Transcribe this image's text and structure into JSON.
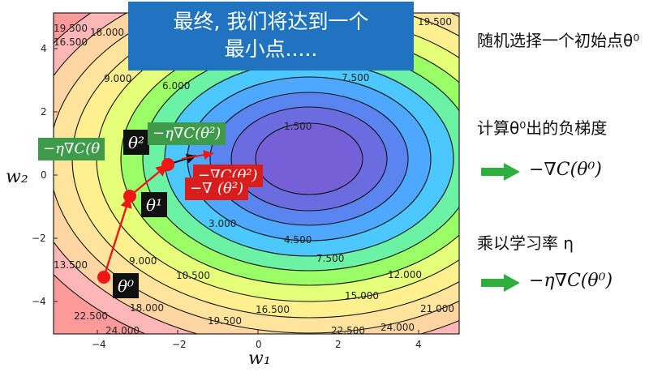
{
  "banner": {
    "line1": "最终, 我们将达到一个",
    "line2": "最小点....."
  },
  "steps": {
    "step1": "随机选择一个初始点θ⁰",
    "step2": "计算θ⁰出的负梯度",
    "step2_expr": "−∇C(θ⁰)",
    "step3": "乘以学习率 η",
    "step3_expr": "−η∇C(θ⁰)"
  },
  "axes": {
    "x_name": "w₁",
    "y_name": "w₂",
    "x_ticks": [
      "−4",
      "−2",
      "0",
      "2",
      "4"
    ],
    "y_ticks": [
      "4",
      "2",
      "0",
      "−2",
      "−4"
    ]
  },
  "contour_labels": [
    "19.500",
    "18.000",
    "16.500",
    "19.500",
    "7.500",
    "9.000",
    "6.000",
    "1.500",
    "4.500",
    "3.000",
    "7.500",
    "9.000",
    "10.500",
    "12.000",
    "13.500",
    "15.000",
    "16.500",
    "18.000",
    "19.500",
    "21.000",
    "22.500",
    "24.000",
    "22.500",
    "24.000"
  ],
  "annotations": {
    "theta0": "θ⁰",
    "theta1": "θ¹",
    "theta2": "θ²",
    "grad_green_1": "−η∇C(θ",
    "grad_green_2": "−η∇C(θ²)",
    "grad_red_1": "−∇C(θ²)",
    "grad_red_2": "−∇",
    "grad_red_3": "(θ²)"
  },
  "colors": {
    "banner": "#1f73bf",
    "green": "#3f9a4a",
    "red": "#d81d1d",
    "point": "#ef1616"
  }
}
